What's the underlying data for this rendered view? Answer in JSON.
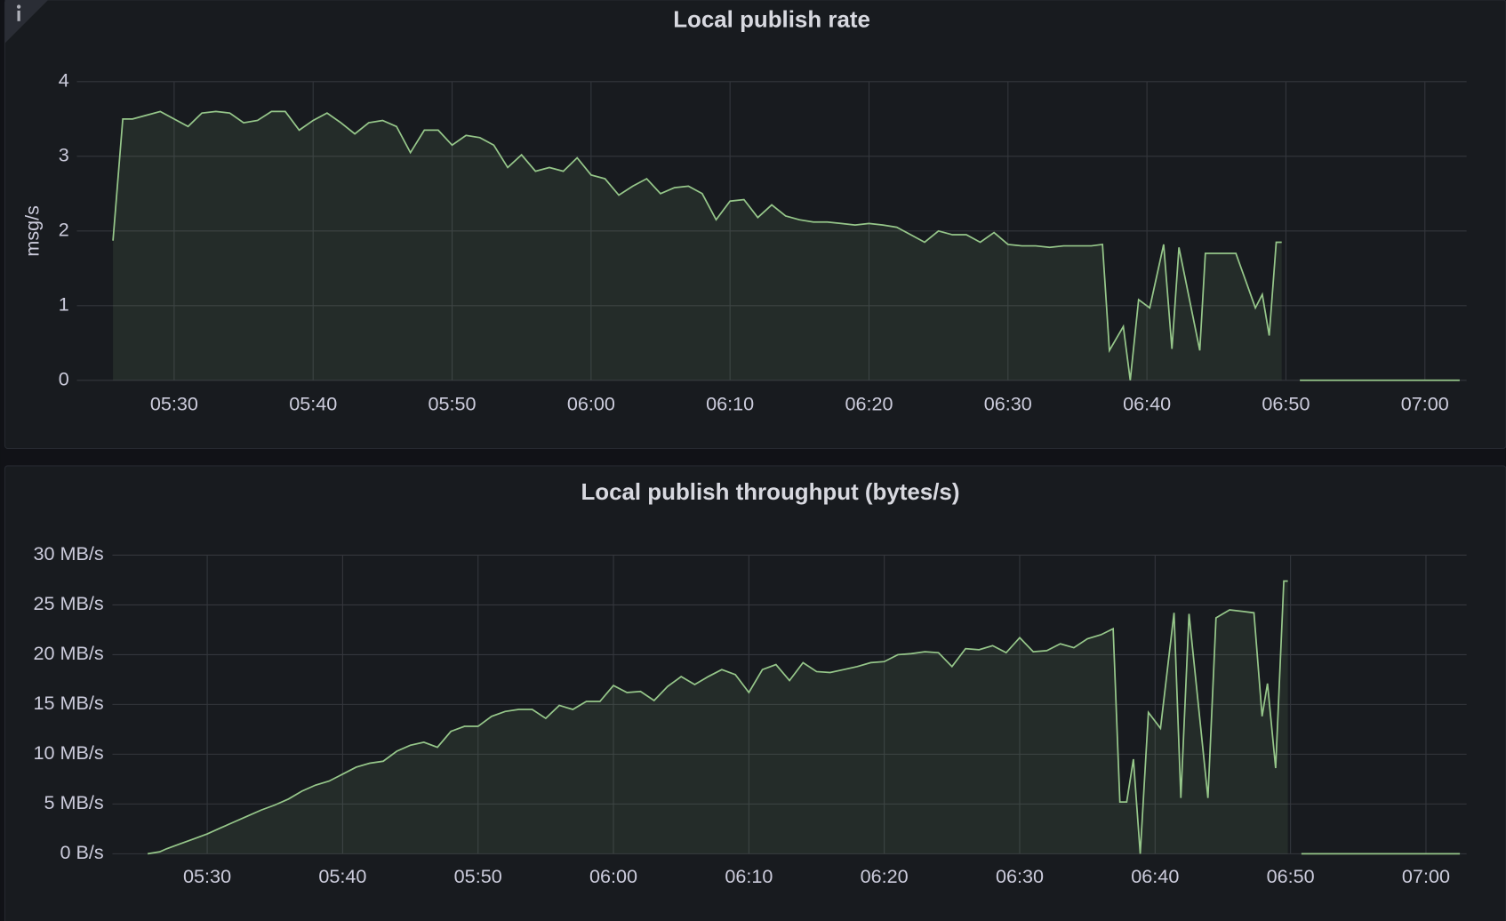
{
  "chart_data": [
    {
      "type": "area",
      "title": "Local publish rate",
      "ylabel": "msg/s",
      "color": "#96c78a",
      "grid": true,
      "xlim": [
        323,
        423
      ],
      "ylim": [
        0,
        4
      ],
      "xticks": [
        {
          "value": 330,
          "label": "05:30"
        },
        {
          "value": 340,
          "label": "05:40"
        },
        {
          "value": 350,
          "label": "05:50"
        },
        {
          "value": 360,
          "label": "06:00"
        },
        {
          "value": 370,
          "label": "06:10"
        },
        {
          "value": 380,
          "label": "06:20"
        },
        {
          "value": 390,
          "label": "06:30"
        },
        {
          "value": 400,
          "label": "06:40"
        },
        {
          "value": 410,
          "label": "06:50"
        },
        {
          "value": 420,
          "label": "07:00"
        }
      ],
      "yticks": [
        0,
        1,
        2,
        3,
        4
      ],
      "x": [
        325.6,
        326.3,
        327,
        328,
        329,
        330,
        331,
        332,
        333,
        334,
        335,
        336,
        337,
        338,
        339,
        340,
        341,
        342,
        343,
        344,
        345,
        346,
        347,
        348,
        349,
        350,
        351,
        352,
        353,
        354,
        355,
        356,
        357,
        358,
        359,
        360,
        361,
        362,
        363,
        364,
        365,
        366,
        367,
        368,
        369,
        370,
        371,
        372,
        373,
        374,
        375,
        376,
        377,
        378,
        379,
        380,
        381,
        382,
        383,
        384,
        385,
        386,
        387,
        388,
        389,
        390,
        391,
        392,
        393,
        394,
        395,
        396,
        396.8,
        397.3,
        398.3,
        398.8,
        399.4,
        400.2,
        401.2,
        401.8,
        402.3,
        403.8,
        404.2,
        406.4,
        407.8,
        408.3,
        408.8,
        409.3,
        409.7,
        410.3,
        411,
        422.5
      ],
      "values": [
        1.87,
        3.5,
        3.5,
        3.55,
        3.6,
        3.5,
        3.4,
        3.58,
        3.6,
        3.58,
        3.45,
        3.48,
        3.6,
        3.6,
        3.35,
        3.48,
        3.58,
        3.45,
        3.3,
        3.45,
        3.48,
        3.4,
        3.05,
        3.35,
        3.35,
        3.15,
        3.28,
        3.25,
        3.15,
        2.85,
        3.02,
        2.8,
        2.85,
        2.8,
        2.98,
        2.75,
        2.7,
        2.48,
        2.6,
        2.7,
        2.5,
        2.58,
        2.6,
        2.5,
        2.15,
        2.4,
        2.42,
        2.18,
        2.35,
        2.2,
        2.15,
        2.12,
        2.12,
        2.1,
        2.08,
        2.1,
        2.08,
        2.05,
        1.95,
        1.85,
        2.0,
        1.95,
        1.95,
        1.85,
        1.98,
        1.82,
        1.8,
        1.8,
        1.78,
        1.8,
        1.8,
        1.8,
        1.82,
        0.4,
        0.72,
        0,
        1.08,
        0.97,
        1.82,
        0.42,
        1.78,
        0.4,
        1.7,
        1.7,
        0.97,
        1.15,
        0.6,
        1.85,
        1.85,
        null,
        0,
        0
      ]
    },
    {
      "type": "area",
      "title": "Local publish throughput (bytes/s)",
      "color": "#96c78a",
      "grid": true,
      "xlim": [
        323,
        423
      ],
      "ylim": [
        0,
        30
      ],
      "xticks": [
        {
          "value": 330,
          "label": "05:30"
        },
        {
          "value": 340,
          "label": "05:40"
        },
        {
          "value": 350,
          "label": "05:50"
        },
        {
          "value": 360,
          "label": "06:00"
        },
        {
          "value": 370,
          "label": "06:10"
        },
        {
          "value": 380,
          "label": "06:20"
        },
        {
          "value": 390,
          "label": "06:30"
        },
        {
          "value": 400,
          "label": "06:40"
        },
        {
          "value": 410,
          "label": "06:50"
        },
        {
          "value": 420,
          "label": "07:00"
        }
      ],
      "yticks": [
        {
          "value": 0,
          "label": "0 B/s"
        },
        {
          "value": 5,
          "label": "5 MB/s"
        },
        {
          "value": 10,
          "label": "10 MB/s"
        },
        {
          "value": 15,
          "label": "15 MB/s"
        },
        {
          "value": 20,
          "label": "20 MB/s"
        },
        {
          "value": 25,
          "label": "25 MB/s"
        },
        {
          "value": 30,
          "label": "30 MB/s"
        }
      ],
      "x": [
        325.6,
        326.5,
        327,
        328,
        329,
        330,
        331,
        332,
        333,
        334,
        335,
        336,
        337,
        338,
        339,
        340,
        341,
        342,
        343,
        344,
        345,
        346,
        347,
        348,
        349,
        350,
        351,
        352,
        353,
        354,
        355,
        356,
        357,
        358,
        359,
        360,
        361,
        362,
        363,
        364,
        365,
        366,
        367,
        368,
        369,
        370,
        371,
        372,
        373,
        374,
        375,
        376,
        377,
        378,
        379,
        380,
        381,
        382,
        383,
        384,
        385,
        386,
        387,
        388,
        389,
        390,
        391,
        392,
        393,
        394,
        395,
        396,
        396.9,
        397.4,
        397.9,
        398.4,
        398.9,
        399.5,
        400.4,
        401.4,
        401.9,
        402.5,
        403.9,
        404.5,
        405.5,
        407.3,
        407.9,
        408.3,
        408.9,
        409.5,
        409.8,
        410.3,
        410.8,
        422.5
      ],
      "values": [
        0,
        0.2,
        0.5,
        1,
        1.5,
        2,
        2.6,
        3.2,
        3.8,
        4.4,
        4.9,
        5.5,
        6.3,
        6.9,
        7.3,
        8,
        8.7,
        9.1,
        9.3,
        10.3,
        10.9,
        11.2,
        10.7,
        12.3,
        12.8,
        12.8,
        13.8,
        14.3,
        14.5,
        14.5,
        13.6,
        14.9,
        14.5,
        15.3,
        15.3,
        16.9,
        16.2,
        16.3,
        15.4,
        16.8,
        17.8,
        17,
        17.8,
        18.5,
        18,
        16.2,
        18.5,
        19,
        17.4,
        19.2,
        18.3,
        18.2,
        18.5,
        18.8,
        19.2,
        19.3,
        20,
        20.1,
        20.3,
        20.2,
        18.8,
        20.6,
        20.5,
        20.9,
        20.2,
        21.7,
        20.3,
        20.4,
        21.1,
        20.7,
        21.6,
        22,
        22.6,
        5.2,
        5.2,
        9.5,
        0,
        14.2,
        12.6,
        24.2,
        5.6,
        24.1,
        5.6,
        23.7,
        24.5,
        24.2,
        13.8,
        17.1,
        8.6,
        27.4,
        27.4,
        null,
        0,
        0
      ]
    }
  ]
}
